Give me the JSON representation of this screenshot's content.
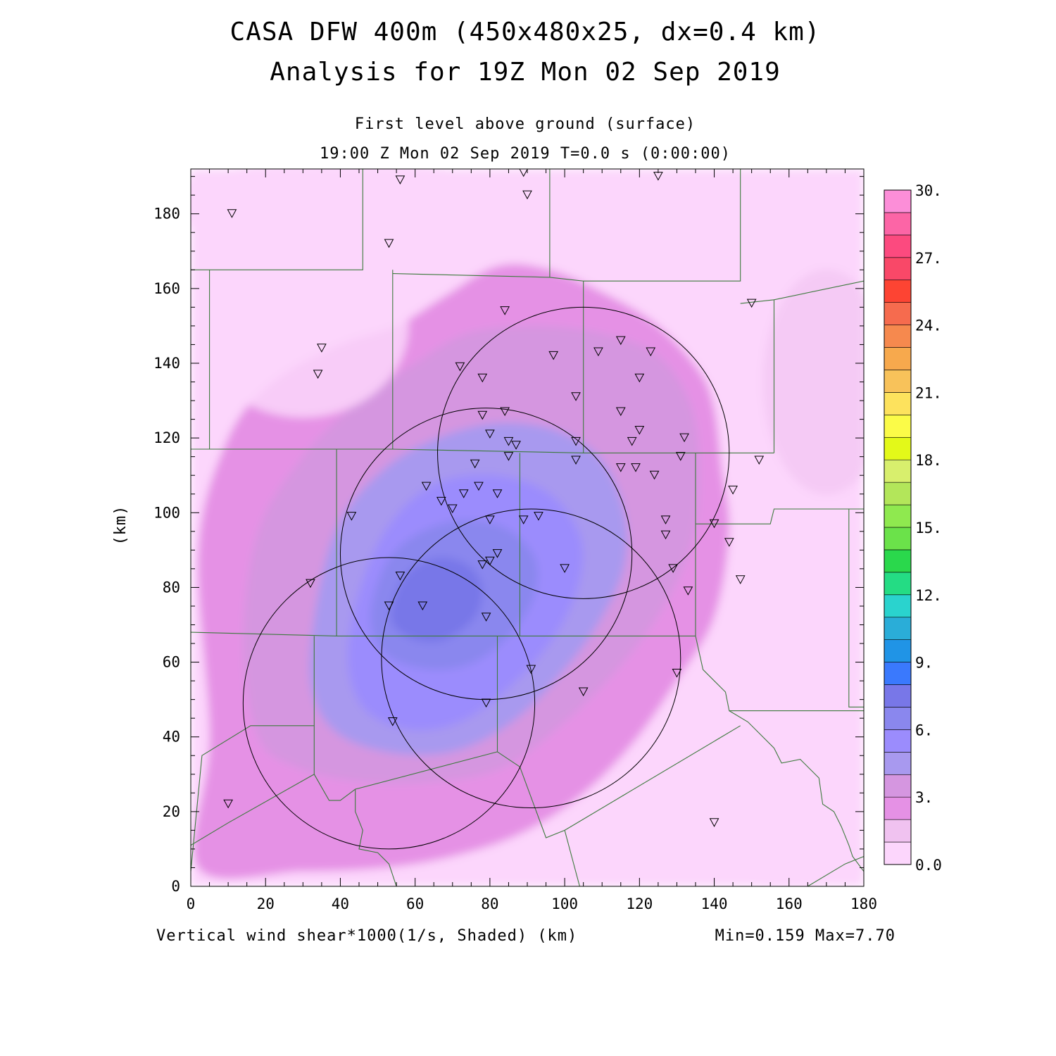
{
  "title": "CASA DFW 400m (450x480x25, dx=0.4 km)",
  "subtitle": "Analysis for 19Z Mon 02 Sep 2019",
  "level_label": "First level above ground (surface)",
  "time_label": "19:00 Z Mon 02 Sep 2019    T=0.0 s (0:00:00)",
  "field_label": "Vertical wind shear*1000(1/s, Shaded)  (km)",
  "minmax_label": "Min=0.159 Max=7.70",
  "chart_data": {
    "type": "heatmap",
    "xlabel": "",
    "ylabel": "(km)",
    "xlim": [
      0,
      180
    ],
    "ylim": [
      0,
      192
    ],
    "x_ticks": [
      "0",
      "20",
      "40",
      "60",
      "80",
      "100",
      "120",
      "140",
      "160",
      "180"
    ],
    "y_ticks": [
      "0",
      "20",
      "40",
      "60",
      "80",
      "100",
      "120",
      "140",
      "160",
      "180"
    ],
    "colorbar": {
      "tick_labels": [
        "0.0",
        "3.",
        "6.",
        "9.",
        "12.",
        "15.",
        "18.",
        "21.",
        "24.",
        "27.",
        "30."
      ],
      "colors": [
        "#fcd6fc",
        "#f0c2f0",
        "#e591e5",
        "#d596e0",
        "#a899ef",
        "#9b8cfd",
        "#8a87ee",
        "#7877e8",
        "#3a79fd",
        "#2094e6",
        "#2aadd8",
        "#2ad3ce",
        "#24dc84",
        "#2ad84c",
        "#6be24a",
        "#8fe94f",
        "#b3e65a",
        "#d8ef6d",
        "#e3f919",
        "#fbfb48",
        "#fde25d",
        "#f8c25a",
        "#f7a94d",
        "#f6894e",
        "#f66b4e",
        "#fd4433",
        "#f94868",
        "#fc4a7f",
        "#fc65a6",
        "#fc8ed8"
      ]
    },
    "shading_contours": [
      {
        "level": 1.5,
        "color": "#f0c2f0",
        "points": [
          [
            0,
            192
          ],
          [
            180,
            192
          ],
          [
            180,
            0
          ],
          [
            0,
            0
          ]
        ]
      },
      {
        "level": 2.0,
        "color": "#e591e5",
        "points": [
          [
            2,
            5
          ],
          [
            5,
            40
          ],
          [
            2,
            90
          ],
          [
            10,
            120
          ],
          [
            22,
            135
          ],
          [
            40,
            145
          ],
          [
            55,
            150
          ],
          [
            68,
            158
          ],
          [
            82,
            166
          ],
          [
            96,
            165
          ],
          [
            112,
            158
          ],
          [
            125,
            150
          ],
          [
            136,
            138
          ],
          [
            140,
            128
          ],
          [
            142,
            112
          ],
          [
            144,
            95
          ],
          [
            140,
            72
          ],
          [
            130,
            55
          ],
          [
            118,
            38
          ],
          [
            104,
            24
          ],
          [
            88,
            14
          ],
          [
            70,
            8
          ],
          [
            52,
            5
          ],
          [
            30,
            4
          ]
        ]
      },
      {
        "level": 3.0,
        "color": "#d596e0",
        "points": [
          [
            18,
            40
          ],
          [
            14,
            65
          ],
          [
            18,
            95
          ],
          [
            30,
            115
          ],
          [
            45,
            130
          ],
          [
            60,
            140
          ],
          [
            74,
            148
          ],
          [
            92,
            150
          ],
          [
            110,
            148
          ],
          [
            125,
            142
          ],
          [
            134,
            128
          ],
          [
            136,
            110
          ],
          [
            134,
            92
          ],
          [
            126,
            74
          ],
          [
            114,
            58
          ],
          [
            100,
            44
          ],
          [
            84,
            32
          ],
          [
            66,
            28
          ],
          [
            45,
            28
          ],
          [
            28,
            32
          ]
        ]
      },
      {
        "level": 4.0,
        "color": "#a899ef",
        "points": [
          [
            32,
            55
          ],
          [
            34,
            78
          ],
          [
            40,
            98
          ],
          [
            52,
            112
          ],
          [
            66,
            120
          ],
          [
            82,
            124
          ],
          [
            98,
            122
          ],
          [
            110,
            114
          ],
          [
            116,
            100
          ],
          [
            116,
            86
          ],
          [
            110,
            72
          ],
          [
            100,
            58
          ],
          [
            86,
            44
          ],
          [
            70,
            36
          ],
          [
            52,
            36
          ],
          [
            38,
            42
          ]
        ]
      },
      {
        "level": 5.0,
        "color": "#9b8cfd",
        "points": [
          [
            42,
            62
          ],
          [
            46,
            82
          ],
          [
            54,
            98
          ],
          [
            66,
            108
          ],
          [
            82,
            110
          ],
          [
            96,
            105
          ],
          [
            104,
            94
          ],
          [
            104,
            82
          ],
          [
            98,
            68
          ],
          [
            86,
            54
          ],
          [
            72,
            44
          ],
          [
            58,
            42
          ],
          [
            46,
            48
          ]
        ]
      },
      {
        "level": 6.0,
        "color": "#8a87ee",
        "points": [
          [
            48,
            72
          ],
          [
            52,
            86
          ],
          [
            60,
            94
          ],
          [
            72,
            98
          ],
          [
            84,
            96
          ],
          [
            92,
            88
          ],
          [
            92,
            78
          ],
          [
            86,
            68
          ],
          [
            76,
            60
          ],
          [
            64,
            58
          ],
          [
            52,
            62
          ]
        ]
      },
      {
        "level": 7.0,
        "color": "#7877e8",
        "points": [
          [
            54,
            76
          ],
          [
            58,
            84
          ],
          [
            66,
            88
          ],
          [
            74,
            86
          ],
          [
            78,
            80
          ],
          [
            76,
            72
          ],
          [
            68,
            66
          ],
          [
            60,
            66
          ],
          [
            54,
            70
          ]
        ]
      }
    ],
    "radar_ranges": [
      {
        "cx": 105,
        "cy": 116,
        "r": 39
      },
      {
        "cx": 79,
        "cy": 89,
        "r": 39
      },
      {
        "cx": 53,
        "cy": 49,
        "r": 39
      },
      {
        "cx": 91,
        "cy": 61,
        "r": 40
      }
    ],
    "county_lines": [
      [
        [
          0,
          165
        ],
        [
          46,
          165
        ],
        [
          46,
          192
        ]
      ],
      [
        [
          5,
          165
        ],
        [
          5,
          117
        ]
      ],
      [
        [
          54,
          165
        ],
        [
          54,
          117
        ]
      ],
      [
        [
          54,
          164
        ],
        [
          96,
          163
        ],
        [
          105,
          162
        ],
        [
          105,
          116
        ]
      ],
      [
        [
          96,
          163
        ],
        [
          96,
          192
        ]
      ],
      [
        [
          105,
          162
        ],
        [
          147,
          162
        ],
        [
          147,
          192
        ]
      ],
      [
        [
          147,
          156
        ],
        [
          156,
          157
        ],
        [
          180,
          162
        ]
      ],
      [
        [
          156,
          157
        ],
        [
          156,
          116
        ]
      ],
      [
        [
          0,
          117
        ],
        [
          54,
          117
        ],
        [
          105,
          116
        ],
        [
          156,
          116
        ]
      ],
      [
        [
          39,
          117
        ],
        [
          39,
          67
        ]
      ],
      [
        [
          88,
          116
        ],
        [
          88,
          67
        ]
      ],
      [
        [
          135,
          116
        ],
        [
          135,
          67
        ]
      ],
      [
        [
          135,
          97
        ],
        [
          155,
          97
        ],
        [
          156,
          101
        ],
        [
          180,
          101
        ]
      ],
      [
        [
          176,
          101
        ],
        [
          176,
          48
        ],
        [
          180,
          48
        ]
      ],
      [
        [
          0,
          68
        ],
        [
          39,
          67
        ],
        [
          88,
          67
        ],
        [
          135,
          67
        ]
      ],
      [
        [
          33,
          67
        ],
        [
          33,
          30
        ]
      ],
      [
        [
          82,
          67
        ],
        [
          82,
          36
        ]
      ],
      [
        [
          0,
          11
        ],
        [
          10,
          17
        ],
        [
          33,
          30
        ],
        [
          37,
          23
        ],
        [
          40,
          23
        ],
        [
          44,
          26
        ],
        [
          82,
          36
        ]
      ],
      [
        [
          0,
          4
        ],
        [
          3,
          35
        ],
        [
          16,
          43
        ],
        [
          33,
          43
        ]
      ],
      [
        [
          82,
          36
        ],
        [
          88,
          32
        ],
        [
          95,
          13
        ],
        [
          100,
          15
        ],
        [
          104,
          0
        ]
      ],
      [
        [
          44,
          26
        ],
        [
          44,
          20
        ],
        [
          46,
          15
        ],
        [
          45,
          10
        ],
        [
          50,
          9
        ],
        [
          53,
          6
        ],
        [
          55,
          0
        ]
      ],
      [
        [
          135,
          67
        ],
        [
          137,
          58
        ],
        [
          143,
          52
        ],
        [
          144,
          47
        ],
        [
          156,
          47
        ],
        [
          183,
          47
        ]
      ],
      [
        [
          100,
          15
        ],
        [
          147,
          43
        ]
      ],
      [
        [
          144,
          47
        ],
        [
          149,
          44
        ],
        [
          156,
          37
        ],
        [
          158,
          33
        ],
        [
          163,
          34
        ],
        [
          168,
          29
        ],
        [
          169,
          22
        ],
        [
          172,
          20
        ],
        [
          174,
          16
        ],
        [
          176,
          11
        ],
        [
          177,
          8
        ],
        [
          180,
          4
        ]
      ],
      [
        [
          180,
          8
        ],
        [
          175,
          6
        ],
        [
          165,
          0
        ]
      ]
    ],
    "stations": [
      [
        11,
        180
      ],
      [
        56,
        189
      ],
      [
        89,
        191
      ],
      [
        90,
        185
      ],
      [
        125,
        190
      ],
      [
        53,
        172
      ],
      [
        150,
        156
      ],
      [
        84,
        154
      ],
      [
        35,
        144
      ],
      [
        34,
        137
      ],
      [
        72,
        139
      ],
      [
        78,
        136
      ],
      [
        97,
        142
      ],
      [
        109,
        143
      ],
      [
        115,
        146
      ],
      [
        123,
        143
      ],
      [
        120,
        136
      ],
      [
        103,
        131
      ],
      [
        115,
        127
      ],
      [
        78,
        126
      ],
      [
        84,
        127
      ],
      [
        80,
        121
      ],
      [
        85,
        119
      ],
      [
        87,
        118
      ],
      [
        85,
        115
      ],
      [
        103,
        119
      ],
      [
        103,
        114
      ],
      [
        120,
        122
      ],
      [
        118,
        119
      ],
      [
        132,
        120
      ],
      [
        131,
        115
      ],
      [
        152,
        114
      ],
      [
        115,
        112
      ],
      [
        119,
        112
      ],
      [
        124,
        110
      ],
      [
        76,
        113
      ],
      [
        63,
        107
      ],
      [
        77,
        107
      ],
      [
        82,
        105
      ],
      [
        73,
        105
      ],
      [
        67,
        103
      ],
      [
        70,
        101
      ],
      [
        43,
        99
      ],
      [
        93,
        99
      ],
      [
        89,
        98
      ],
      [
        80,
        98
      ],
      [
        127,
        98
      ],
      [
        127,
        94
      ],
      [
        140,
        97
      ],
      [
        145,
        106
      ],
      [
        82,
        89
      ],
      [
        80,
        87
      ],
      [
        78,
        86
      ],
      [
        100,
        85
      ],
      [
        129,
        85
      ],
      [
        133,
        79
      ],
      [
        147,
        82
      ],
      [
        144,
        92
      ],
      [
        32,
        81
      ],
      [
        56,
        83
      ],
      [
        53,
        75
      ],
      [
        62,
        75
      ],
      [
        79,
        72
      ],
      [
        91,
        58
      ],
      [
        130,
        57
      ],
      [
        105,
        52
      ],
      [
        79,
        49
      ],
      [
        54,
        44
      ],
      [
        10,
        22
      ],
      [
        140,
        17
      ]
    ]
  }
}
